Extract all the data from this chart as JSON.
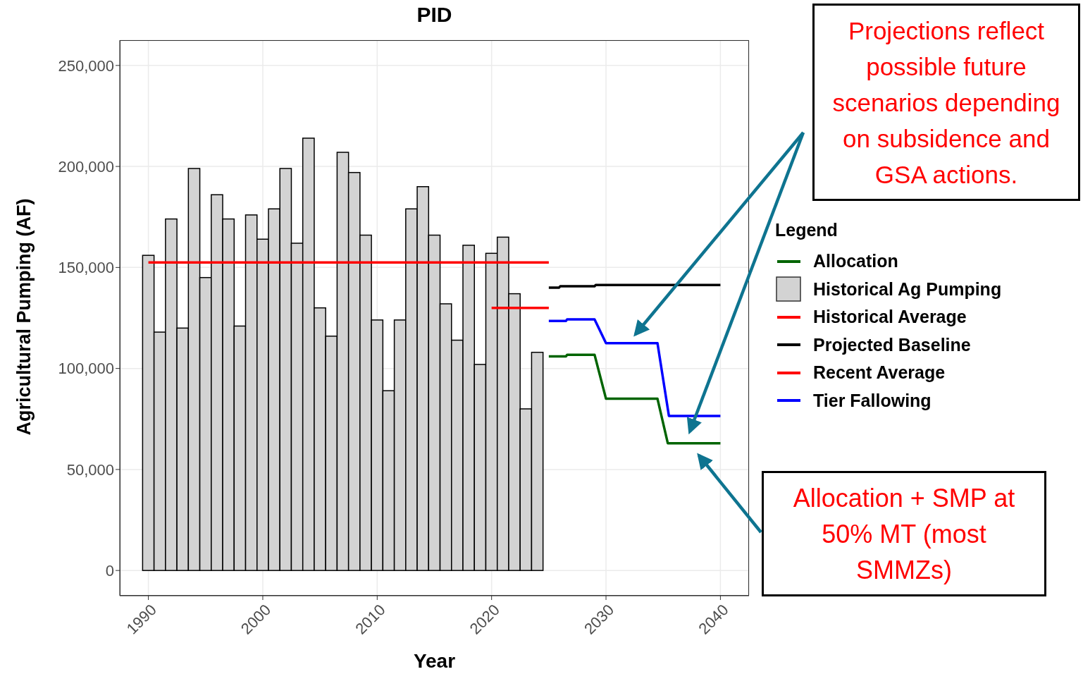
{
  "chart_data": {
    "type": "bar",
    "title": "PID",
    "xlabel": "Year",
    "ylabel": "Agricultural Pumping (AF)",
    "legend_title": "Legend",
    "legend": "right",
    "grid": true,
    "x": [
      1990,
      1991,
      1992,
      1993,
      1994,
      1995,
      1996,
      1997,
      1998,
      1999,
      2000,
      2001,
      2002,
      2003,
      2004,
      2005,
      2006,
      2007,
      2008,
      2009,
      2010,
      2011,
      2012,
      2013,
      2014,
      2015,
      2016,
      2017,
      2018,
      2019,
      2020,
      2021,
      2022,
      2023,
      2024
    ],
    "xlim": [
      1987.5,
      2042.5
    ],
    "xticks": [
      1990,
      2000,
      2010,
      2020,
      2030,
      2040
    ],
    "ylim": [
      -12500,
      262500
    ],
    "yticks": [
      {
        "value": 0,
        "label": "0"
      },
      {
        "value": 50000,
        "label": "50,000"
      },
      {
        "value": 100000,
        "label": "100,000"
      },
      {
        "value": 150000,
        "label": "150,000"
      },
      {
        "value": 200000,
        "label": "200,000"
      },
      {
        "value": 250000,
        "label": "250,000"
      }
    ],
    "series": [
      {
        "name": "Allocation",
        "type": "line",
        "color": "#006400",
        "x": [
          2025,
          2026.5,
          2026.6,
          2029,
          2030,
          2034.5,
          2035.4,
          2040
        ],
        "values": [
          106000,
          106000,
          106800,
          106800,
          85000,
          85000,
          63000,
          63000
        ]
      },
      {
        "name": "Historical Ag Pumping",
        "color": "#d3d3d3",
        "values": [
          156000,
          118000,
          174000,
          120000,
          199000,
          145000,
          186000,
          174000,
          121000,
          176000,
          164000,
          179000,
          199000,
          162000,
          214000,
          130000,
          116000,
          207000,
          197000,
          166000,
          124000,
          89000,
          124000,
          179000,
          190000,
          166000,
          132000,
          114000,
          161000,
          102000,
          157000,
          165000,
          137000,
          80000,
          108000
        ]
      },
      {
        "name": "Historical Average",
        "type": "line",
        "color": "#ff0000",
        "x": [
          1990,
          2025
        ],
        "values": [
          152500,
          152500
        ]
      },
      {
        "name": "Projected Baseline",
        "type": "line",
        "color": "#000000",
        "x": [
          2025,
          2025.9,
          2026,
          2029,
          2029.1,
          2040
        ],
        "values": [
          140000,
          140000,
          140700,
          140700,
          141300,
          141300
        ]
      },
      {
        "name": "Recent Average",
        "type": "line",
        "color": "#ff0000",
        "x": [
          2020,
          2025
        ],
        "values": [
          130000,
          130000
        ]
      },
      {
        "name": "Tier Fallowing",
        "type": "line",
        "color": "#0000ff",
        "x": [
          2025,
          2026.5,
          2026.6,
          2029,
          2030,
          2034.5,
          2035.5,
          2040
        ],
        "values": [
          123500,
          123500,
          124300,
          124300,
          112500,
          112500,
          76500,
          76500
        ]
      }
    ],
    "annotations": [
      "Projections reflect possible future scenarios depending on subsidence and GSA actions.",
      "Allocation + SMP at 50% MT (most SMMZs)"
    ]
  }
}
